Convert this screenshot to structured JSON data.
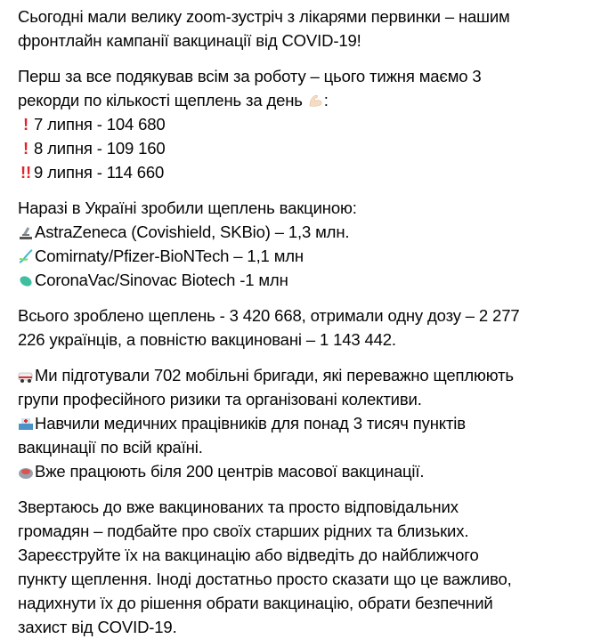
{
  "post": {
    "p1": [
      "Сьогодні мали велику zoom-зустріч з лікарями первинки – нашим",
      "фронтлайн кампанії вакцинації від COVID-19!"
    ],
    "p2": {
      "lines": [
        "Перш за все подякував всім за роботу – цього тижня маємо 3",
        "рекорди по кількості щеплень за день"
      ],
      "after_emoji": ":",
      "records": [
        {
          "icon": "exclamation-icon",
          "text": "7 липня - 104 680"
        },
        {
          "icon": "exclamation-icon",
          "text": "8 липня - 109 160"
        },
        {
          "icon": "double-exclamation-icon",
          "text": "9 липня - 114 660"
        }
      ]
    },
    "p3": {
      "heading": "Наразі в Україні зробили щеплень вакциною:",
      "vaccines": [
        {
          "icon": "microscope-icon",
          "text": "AstraZeneca (Covishield, SKBio) – 1,3 млн."
        },
        {
          "icon": "dna-icon",
          "text": "Comirnaty/Pfizer-BioNTech – 1,1 млн"
        },
        {
          "icon": "microbe-icon",
          "text": "CoronaVac/Sinovac Biotech -1 млн"
        }
      ]
    },
    "p4": [
      "Всього зроблено щеплень - 3 420 668, отримали одну дозу – 2 277",
      "226 українців, а повністю вакциновані – 1 143 442."
    ],
    "p5": [
      {
        "icon": "ambulance-icon",
        "lines": [
          "Ми підготували 702 мобільні бригади, які переважно щеплюють",
          "групи професійного ризики та організовані колективи."
        ]
      },
      {
        "icon": "hospital-icon",
        "lines": [
          "Навчили медичних працівників для понад 3 тисяч пунктів",
          "вакцинації по всій країні."
        ]
      },
      {
        "icon": "stadium-icon",
        "lines": [
          "Вже працюють біля 200 центрів масової вакцинації."
        ]
      }
    ],
    "p6": [
      "Звертаюсь до вже вакцинованих та просто відповідальних",
      "громадян – подбайте про своїх старших рідних та близьких.",
      "Зареєструйте їх на вакцинацію або відведіть до найближчого",
      "пункту щеплення. Іноді достатньо просто сказати що це важливо,",
      "надихнути їх до рішення обрати вакцинацію, обрати безпечний",
      "захист від COVID-19."
    ]
  }
}
